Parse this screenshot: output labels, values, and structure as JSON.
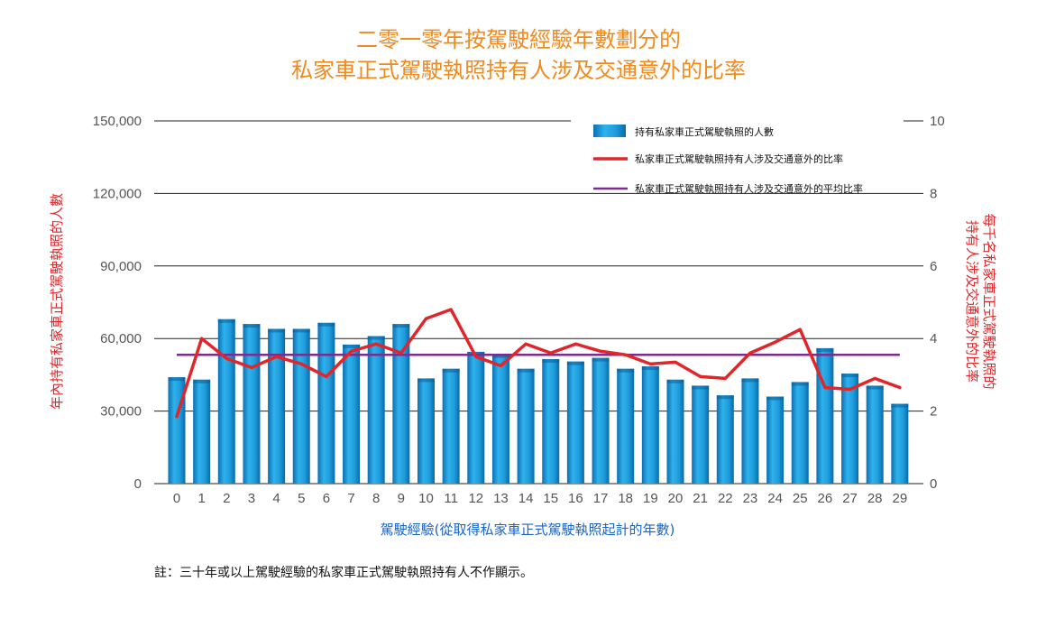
{
  "chart_data": {
    "type": "bar",
    "title": [
      "二零一零年按駕駛經驗年數劃分的",
      "私家車正式駕駛執照持有人涉及交通意外的比率"
    ],
    "xlabel": "駕駛經驗(從取得私家車正式駕駛執照起計的年數)",
    "ylabel_left": "年內持有私家車正式駕駛執照的人數",
    "ylabel_right": [
      "每千名私家車正式駕駛執照的",
      "持有人涉及交通意外的比率"
    ],
    "categories": [
      "0",
      "1",
      "2",
      "3",
      "4",
      "5",
      "6",
      "7",
      "8",
      "9",
      "10",
      "11",
      "12",
      "13",
      "14",
      "15",
      "16",
      "17",
      "18",
      "19",
      "20",
      "21",
      "22",
      "23",
      "24",
      "25",
      "26",
      "27",
      "28",
      "29"
    ],
    "left_axis": {
      "ylim": [
        0,
        150000
      ],
      "ticks": [
        0,
        30000,
        60000,
        90000,
        120000,
        150000
      ],
      "tick_labels": [
        "0",
        "30,000",
        "60,000",
        "90,000",
        "120,000",
        "150,000"
      ]
    },
    "right_axis": {
      "ylim": [
        0,
        10
      ],
      "ticks": [
        0,
        2,
        4,
        6,
        8,
        10
      ],
      "tick_labels": [
        "0",
        "2",
        "4",
        "6",
        "8",
        "10"
      ]
    },
    "grid": true,
    "legend_position": "top-right",
    "series": [
      {
        "name": "持有私家車正式駕駛執照的人數",
        "type": "bar",
        "axis": "left",
        "color": "#1a9ee0",
        "values": [
          44000,
          43000,
          68000,
          66000,
          64000,
          64000,
          66500,
          57500,
          61000,
          66000,
          43500,
          47500,
          54500,
          53500,
          47500,
          51500,
          50500,
          52000,
          47500,
          48500,
          43000,
          40500,
          36500,
          43500,
          36000,
          42000,
          56000,
          45500,
          40500,
          33000
        ]
      },
      {
        "name": "私家車正式駕駛執照持有人涉及交通意外的比率",
        "type": "line",
        "axis": "right",
        "color": "#e0262a",
        "values": [
          1.85,
          4.0,
          3.45,
          3.2,
          3.5,
          3.3,
          2.95,
          3.65,
          3.85,
          3.6,
          4.55,
          4.8,
          3.5,
          3.25,
          3.85,
          3.6,
          3.85,
          3.65,
          3.55,
          3.3,
          3.35,
          2.95,
          2.9,
          3.6,
          3.9,
          4.25,
          2.65,
          2.6,
          2.9,
          2.65
        ]
      },
      {
        "name": "私家車正式駕駛執照持有人涉及交通意外的平均比率",
        "type": "line",
        "axis": "right",
        "color": "#7b2d8e",
        "values": [
          3.55,
          3.55,
          3.55,
          3.55,
          3.55,
          3.55,
          3.55,
          3.55,
          3.55,
          3.55,
          3.55,
          3.55,
          3.55,
          3.55,
          3.55,
          3.55,
          3.55,
          3.55,
          3.55,
          3.55,
          3.55,
          3.55,
          3.55,
          3.55,
          3.55,
          3.55,
          3.55,
          3.55,
          3.55,
          3.55
        ]
      }
    ],
    "note": "註：三十年或以上駕駛經驗的私家車正式駕駛執照持有人不作顯示。"
  }
}
